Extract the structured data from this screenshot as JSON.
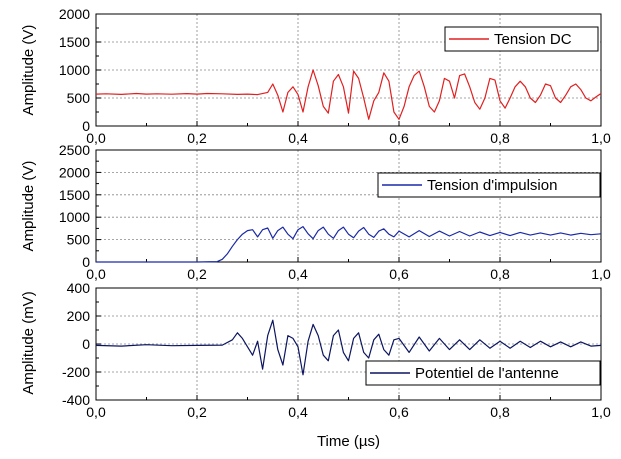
{
  "chart_data": [
    {
      "type": "line",
      "ylabel": "Amplitude (V)",
      "xlim": [
        0,
        1.0
      ],
      "ylim": [
        0,
        2000
      ],
      "xticks": [
        "0,0",
        "0,2",
        "0,4",
        "0,6",
        "0,8",
        "1,0"
      ],
      "yticks": [
        "0",
        "500",
        "1000",
        "1500",
        "2000"
      ],
      "grid": true,
      "legend_position": "top-right",
      "series": [
        {
          "name": "Tension DC",
          "color": "#e02020",
          "x": [
            0,
            0.02,
            0.05,
            0.08,
            0.1,
            0.12,
            0.15,
            0.18,
            0.2,
            0.22,
            0.25,
            0.28,
            0.3,
            0.32,
            0.34,
            0.35,
            0.36,
            0.37,
            0.38,
            0.39,
            0.4,
            0.41,
            0.42,
            0.43,
            0.44,
            0.45,
            0.46,
            0.47,
            0.48,
            0.49,
            0.5,
            0.51,
            0.52,
            0.53,
            0.54,
            0.55,
            0.56,
            0.57,
            0.58,
            0.59,
            0.6,
            0.61,
            0.62,
            0.63,
            0.64,
            0.65,
            0.66,
            0.67,
            0.68,
            0.69,
            0.7,
            0.71,
            0.72,
            0.73,
            0.74,
            0.75,
            0.76,
            0.77,
            0.78,
            0.79,
            0.8,
            0.81,
            0.82,
            0.83,
            0.84,
            0.85,
            0.86,
            0.87,
            0.88,
            0.89,
            0.9,
            0.91,
            0.92,
            0.93,
            0.94,
            0.95,
            0.96,
            0.97,
            0.98,
            0.99,
            1.0
          ],
          "y": [
            570,
            575,
            565,
            580,
            570,
            575,
            568,
            578,
            570,
            580,
            575,
            565,
            570,
            560,
            600,
            750,
            550,
            250,
            600,
            700,
            560,
            250,
            700,
            1000,
            720,
            350,
            230,
            800,
            920,
            700,
            230,
            980,
            850,
            500,
            120,
            450,
            600,
            950,
            800,
            250,
            120,
            350,
            700,
            900,
            980,
            700,
            350,
            250,
            450,
            850,
            800,
            500,
            900,
            930,
            700,
            420,
            300,
            500,
            850,
            820,
            450,
            320,
            500,
            700,
            800,
            700,
            500,
            420,
            550,
            750,
            720,
            500,
            420,
            550,
            700,
            750,
            650,
            500,
            450,
            520,
            580
          ]
        }
      ]
    },
    {
      "type": "line",
      "ylabel": "Amplitude (V)",
      "xlim": [
        0,
        1.0
      ],
      "ylim": [
        0,
        2500
      ],
      "xticks": [
        "0,0",
        "0,2",
        "0,4",
        "0,6",
        "0,8",
        "1,0"
      ],
      "yticks": [
        "0",
        "500",
        "1000",
        "1500",
        "2000",
        "2500"
      ],
      "grid": true,
      "legend_position": "top-right",
      "series": [
        {
          "name": "Tension d'impulsion",
          "color": "#1a2aa8",
          "x": [
            0,
            0.05,
            0.1,
            0.15,
            0.2,
            0.24,
            0.25,
            0.26,
            0.27,
            0.28,
            0.29,
            0.3,
            0.31,
            0.32,
            0.33,
            0.34,
            0.35,
            0.36,
            0.37,
            0.38,
            0.39,
            0.4,
            0.41,
            0.42,
            0.43,
            0.44,
            0.45,
            0.46,
            0.47,
            0.48,
            0.49,
            0.5,
            0.51,
            0.52,
            0.53,
            0.54,
            0.55,
            0.56,
            0.57,
            0.58,
            0.59,
            0.6,
            0.62,
            0.64,
            0.66,
            0.68,
            0.7,
            0.72,
            0.74,
            0.76,
            0.78,
            0.8,
            0.82,
            0.84,
            0.86,
            0.88,
            0.9,
            0.92,
            0.94,
            0.96,
            0.98,
            1.0
          ],
          "y": [
            0,
            0,
            0,
            0,
            0,
            10,
            60,
            180,
            350,
            500,
            620,
            700,
            720,
            560,
            720,
            760,
            530,
            700,
            780,
            620,
            520,
            720,
            790,
            630,
            520,
            700,
            780,
            620,
            530,
            700,
            780,
            620,
            540,
            690,
            770,
            620,
            550,
            690,
            740,
            620,
            560,
            690,
            560,
            700,
            570,
            690,
            580,
            680,
            580,
            670,
            590,
            660,
            590,
            660,
            600,
            650,
            600,
            650,
            600,
            640,
            610,
            630
          ]
        }
      ]
    },
    {
      "type": "line",
      "ylabel": "Amplitude (mV)",
      "xlabel": "Time (µs)",
      "xlim": [
        0,
        1.0
      ],
      "ylim": [
        -400,
        400
      ],
      "xticks": [
        "0,0",
        "0,2",
        "0,4",
        "0,6",
        "0,8",
        "1,0"
      ],
      "yticks": [
        "-400",
        "-200",
        "0",
        "200",
        "400"
      ],
      "grid": true,
      "legend_position": "bottom-right",
      "series": [
        {
          "name": "Potentiel de l'antenne",
          "color": "#0c1560",
          "x": [
            0,
            0.05,
            0.1,
            0.15,
            0.2,
            0.25,
            0.27,
            0.28,
            0.29,
            0.3,
            0.31,
            0.32,
            0.33,
            0.34,
            0.35,
            0.36,
            0.37,
            0.38,
            0.39,
            0.4,
            0.41,
            0.42,
            0.43,
            0.44,
            0.45,
            0.46,
            0.47,
            0.48,
            0.49,
            0.5,
            0.51,
            0.52,
            0.53,
            0.54,
            0.55,
            0.56,
            0.57,
            0.58,
            0.59,
            0.6,
            0.62,
            0.64,
            0.66,
            0.68,
            0.7,
            0.72,
            0.74,
            0.76,
            0.78,
            0.8,
            0.82,
            0.84,
            0.86,
            0.88,
            0.9,
            0.92,
            0.94,
            0.96,
            0.98,
            1.0
          ],
          "y": [
            -10,
            -15,
            -5,
            -12,
            -10,
            -8,
            30,
            80,
            40,
            -20,
            -80,
            20,
            -180,
            60,
            170,
            -40,
            -150,
            60,
            40,
            -20,
            -220,
            20,
            140,
            60,
            -80,
            -120,
            60,
            100,
            -60,
            -120,
            40,
            80,
            -60,
            -100,
            30,
            70,
            -40,
            -80,
            30,
            40,
            -60,
            50,
            -50,
            40,
            -40,
            30,
            -40,
            30,
            -30,
            20,
            -30,
            20,
            -25,
            20,
            -20,
            15,
            -20,
            15,
            -15,
            -10
          ]
        }
      ]
    }
  ]
}
